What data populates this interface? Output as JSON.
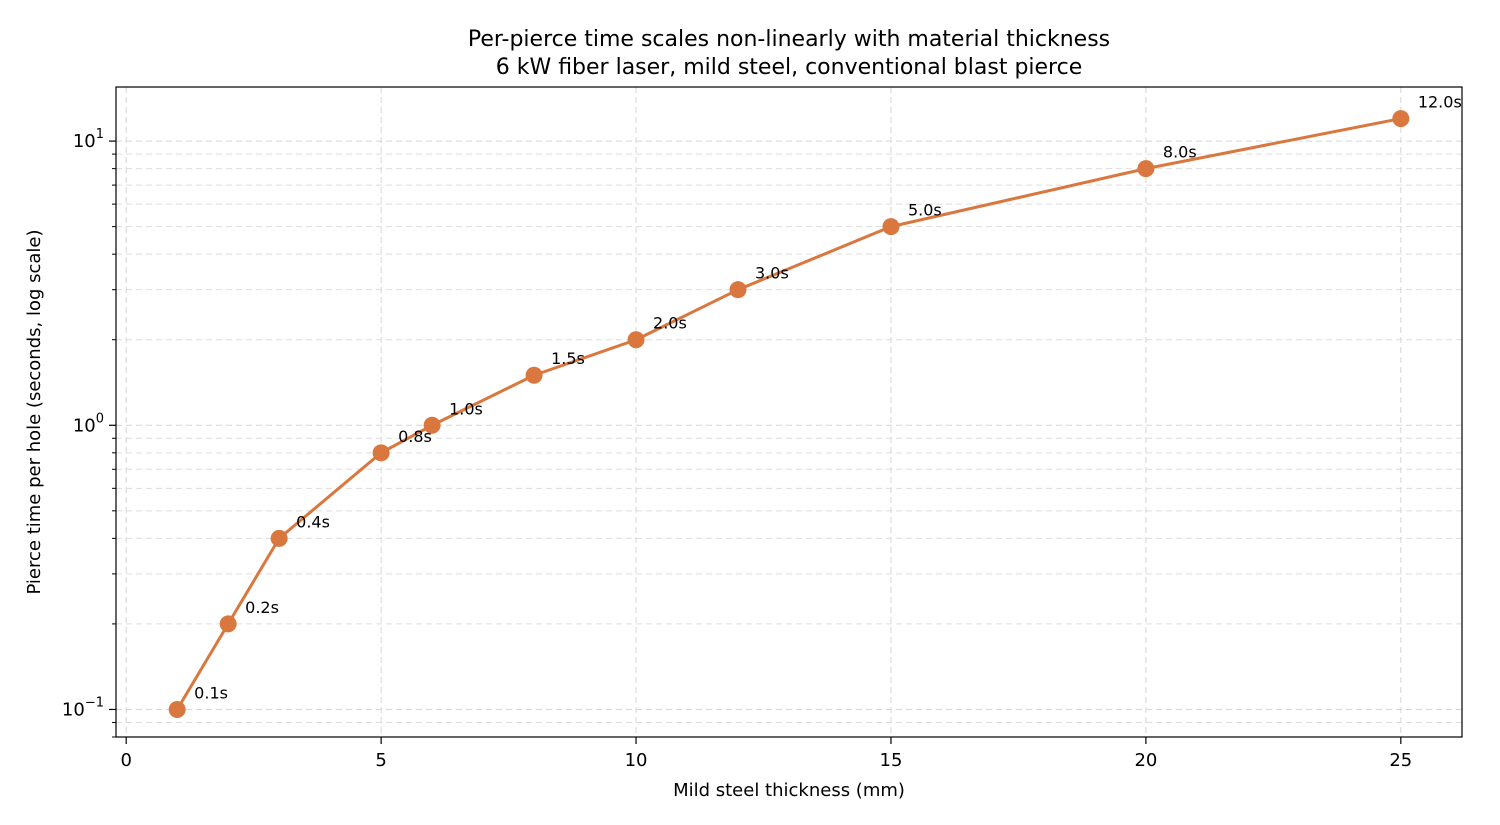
{
  "chart_data": {
    "type": "line",
    "title": "Per-pierce time scales non-linearly with material thickness",
    "subtitle": "6 kW fiber laser, mild steel, conventional blast pierce",
    "xlabel": "Mild steel thickness (mm)",
    "ylabel": "Pierce time per hole (seconds, log scale)",
    "yscale": "log",
    "xlim": [
      -0.2,
      26.2
    ],
    "ylim": [
      0.08,
      15.5
    ],
    "x_ticks": [
      0,
      5,
      10,
      15,
      20,
      25
    ],
    "x_tick_labels": [
      "0",
      "5",
      "10",
      "15",
      "20",
      "25"
    ],
    "y_ticks": [
      0.1,
      1,
      10
    ],
    "y_tick_labels": [
      {
        "base": "10",
        "exp": "−1"
      },
      {
        "base": "10",
        "exp": "0"
      },
      {
        "base": "10",
        "exp": "1"
      }
    ],
    "grid": true,
    "color": "#d9773f",
    "series": [
      {
        "x": [
          1,
          2,
          3,
          5,
          6,
          8,
          10,
          12,
          15,
          20,
          25
        ],
        "y": [
          0.1,
          0.2,
          0.4,
          0.8,
          1.0,
          1.5,
          2.0,
          3.0,
          5.0,
          8.0,
          12.0
        ],
        "labels": [
          "0.1s",
          "0.2s",
          "0.4s",
          "0.8s",
          "1.0s",
          "1.5s",
          "2.0s",
          "3.0s",
          "5.0s",
          "8.0s",
          "12.0s"
        ]
      }
    ]
  }
}
